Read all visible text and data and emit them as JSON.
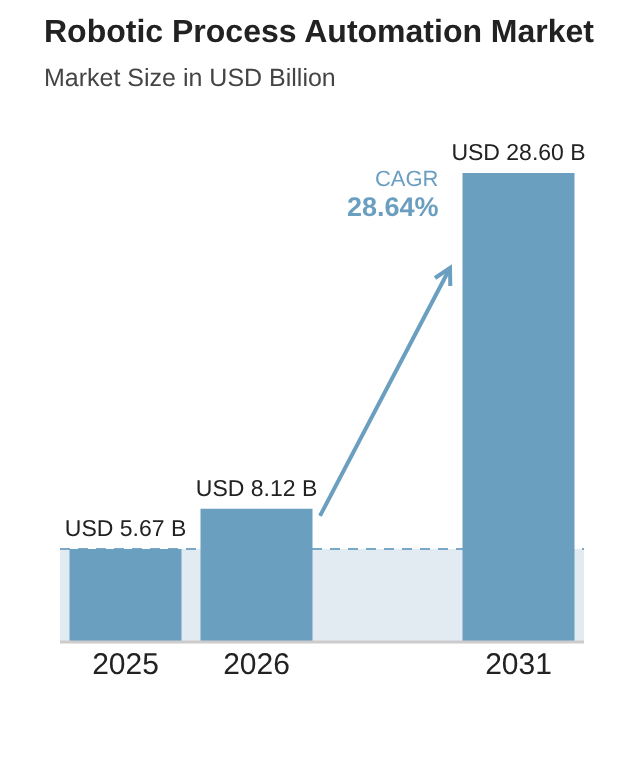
{
  "chart_data": {
    "type": "bar",
    "title": "Robotic Process Automation Market",
    "subtitle": "Market Size in USD Billion",
    "categories": [
      "2025",
      "2026",
      null,
      "2031"
    ],
    "values": [
      5.67,
      8.12,
      null,
      28.6
    ],
    "value_labels": [
      "USD 5.67 B",
      "USD 8.12 B",
      null,
      "USD 28.60 B"
    ],
    "color": "#6a9fc0",
    "annotations": [
      "CAGR",
      "28.64%"
    ],
    "ref_lines": [
      {
        "axis": "y",
        "value": 5.67,
        "color": "#7aa8c8",
        "line_style": "dashed"
      }
    ],
    "bands": [
      {
        "axis": "y",
        "from": 0,
        "to": 5.67,
        "color": "#e3ebf2"
      }
    ],
    "grid": false,
    "legend": false
  }
}
